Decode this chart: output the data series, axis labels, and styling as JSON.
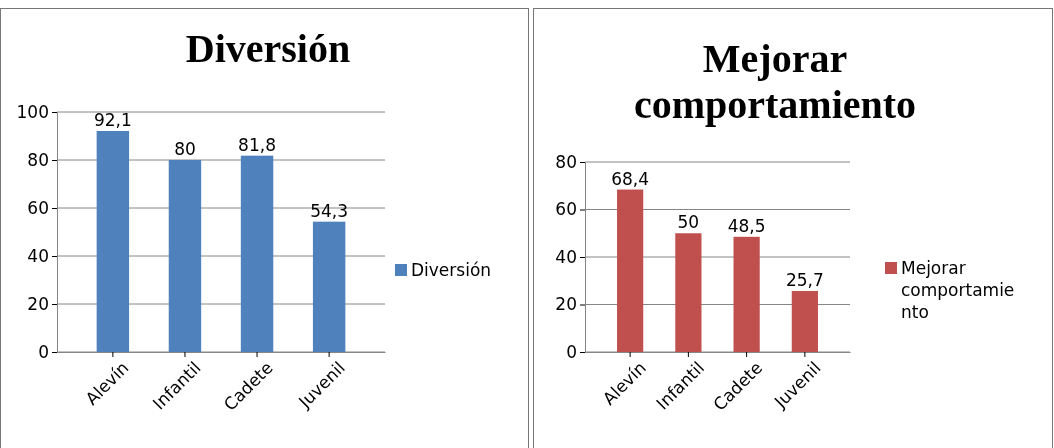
{
  "chart_data": [
    {
      "type": "bar",
      "title": "Diversión",
      "categories": [
        "Alevín",
        "Infantil",
        "Cadete",
        "Juvenil"
      ],
      "series": [
        {
          "name": "Diversión",
          "color": "#4f81bd",
          "values": [
            92.1,
            80,
            81.8,
            54.3
          ],
          "value_labels": [
            "92,1",
            "80",
            "81,8",
            "54,3"
          ]
        }
      ],
      "ylim": [
        0,
        100
      ],
      "yticks": [
        0,
        20,
        40,
        60,
        80,
        100
      ],
      "grid": "y",
      "legend": "right"
    },
    {
      "type": "bar",
      "title": "Mejorar comportamiento",
      "categories": [
        "Alevín",
        "Infantil",
        "Cadete",
        "Juvenil"
      ],
      "series": [
        {
          "name": "Mejorar comportamiento",
          "color": "#c0504d",
          "values": [
            68.4,
            50,
            48.5,
            25.7
          ],
          "value_labels": [
            "68,4",
            "50",
            "48,5",
            "25,7"
          ]
        }
      ],
      "ylim": [
        0,
        80
      ],
      "yticks": [
        0,
        20,
        40,
        60,
        80
      ],
      "grid": "y",
      "legend": "right"
    }
  ]
}
